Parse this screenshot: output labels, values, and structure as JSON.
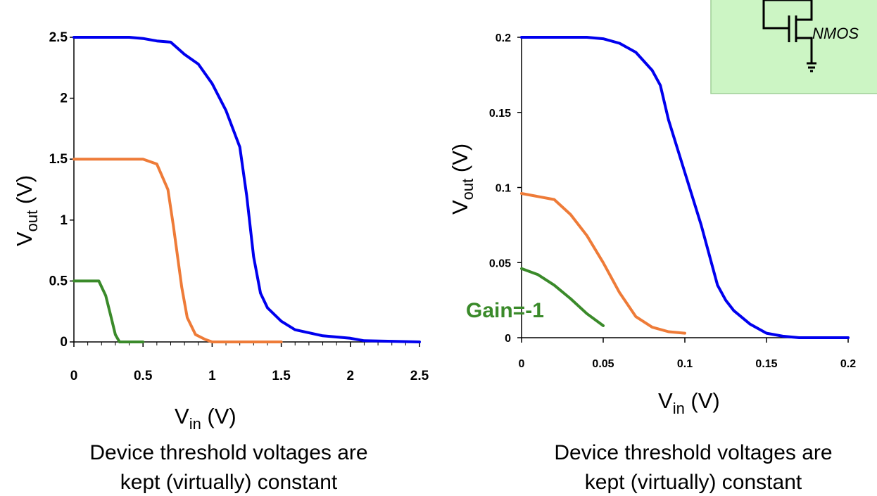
{
  "colors": {
    "blue": "#0000ee",
    "orange": "#ee7b38",
    "green": "#3a8a2a",
    "inset_bg": "#ccf5c4",
    "inset_border": "#9fcf97"
  },
  "inset": {
    "label": "NMOS"
  },
  "chart_data": [
    {
      "type": "line",
      "xlabel": "V",
      "xlabel_sub": "in",
      "xlabel_unit": " (V)",
      "ylabel": "V",
      "ylabel_sub": "out",
      "ylabel_unit": " (V)",
      "xlim": [
        0,
        2.5
      ],
      "ylim": [
        0,
        2.5
      ],
      "xticks": [
        "0",
        "0.5",
        "1",
        "1.5",
        "2",
        "2.5"
      ],
      "yticks": [
        "0",
        "0.5",
        "1",
        "1.5",
        "2",
        "2.5"
      ],
      "caption": [
        "Device threshold voltages are",
        "kept (virtually) constant"
      ],
      "series": [
        {
          "color": "blue",
          "points": [
            [
              0,
              2.5
            ],
            [
              0.4,
              2.5
            ],
            [
              0.5,
              2.49
            ],
            [
              0.6,
              2.47
            ],
            [
              0.7,
              2.46
            ],
            [
              0.8,
              2.36
            ],
            [
              0.9,
              2.28
            ],
            [
              1.0,
              2.12
            ],
            [
              1.1,
              1.9
            ],
            [
              1.2,
              1.6
            ],
            [
              1.25,
              1.2
            ],
            [
              1.3,
              0.7
            ],
            [
              1.35,
              0.4
            ],
            [
              1.4,
              0.28
            ],
            [
              1.5,
              0.17
            ],
            [
              1.6,
              0.1
            ],
            [
              1.8,
              0.05
            ],
            [
              2.0,
              0.03
            ],
            [
              2.1,
              0.01
            ],
            [
              2.5,
              0.0
            ]
          ]
        },
        {
          "color": "orange",
          "points": [
            [
              0,
              1.5
            ],
            [
              0.5,
              1.5
            ],
            [
              0.6,
              1.46
            ],
            [
              0.68,
              1.25
            ],
            [
              0.72,
              0.95
            ],
            [
              0.78,
              0.45
            ],
            [
              0.82,
              0.2
            ],
            [
              0.88,
              0.06
            ],
            [
              0.95,
              0.02
            ],
            [
              1.0,
              0.0
            ],
            [
              1.5,
              0.0
            ]
          ]
        },
        {
          "color": "green",
          "points": [
            [
              0,
              0.5
            ],
            [
              0.18,
              0.5
            ],
            [
              0.23,
              0.38
            ],
            [
              0.27,
              0.2
            ],
            [
              0.3,
              0.06
            ],
            [
              0.33,
              0.0
            ],
            [
              0.5,
              0.0
            ]
          ]
        }
      ]
    },
    {
      "type": "line",
      "xlabel": "V",
      "xlabel_sub": "in",
      "xlabel_unit": " (V)",
      "ylabel": "V",
      "ylabel_sub": "out",
      "ylabel_unit": " (V)",
      "xlim": [
        0,
        0.2
      ],
      "ylim": [
        0,
        0.2
      ],
      "xticks": [
        "0",
        "0.05",
        "0.1",
        "0.15",
        "0.2"
      ],
      "yticks": [
        "0",
        "0.05",
        "0.1",
        "0.15",
        "0.2"
      ],
      "caption": [
        "Device threshold voltages are",
        "kept (virtually) constant"
      ],
      "annotation": "Gain=-1",
      "series": [
        {
          "color": "blue",
          "points": [
            [
              0,
              0.2
            ],
            [
              0.04,
              0.2
            ],
            [
              0.05,
              0.199
            ],
            [
              0.06,
              0.196
            ],
            [
              0.07,
              0.19
            ],
            [
              0.08,
              0.178
            ],
            [
              0.085,
              0.168
            ],
            [
              0.09,
              0.145
            ],
            [
              0.1,
              0.11
            ],
            [
              0.11,
              0.075
            ],
            [
              0.12,
              0.035
            ],
            [
              0.125,
              0.025
            ],
            [
              0.13,
              0.018
            ],
            [
              0.14,
              0.009
            ],
            [
              0.15,
              0.003
            ],
            [
              0.16,
              0.001
            ],
            [
              0.17,
              0.0
            ],
            [
              0.2,
              0.0
            ]
          ]
        },
        {
          "color": "orange",
          "points": [
            [
              0,
              0.096
            ],
            [
              0.01,
              0.094
            ],
            [
              0.02,
              0.092
            ],
            [
              0.03,
              0.082
            ],
            [
              0.04,
              0.068
            ],
            [
              0.05,
              0.05
            ],
            [
              0.06,
              0.03
            ],
            [
              0.07,
              0.014
            ],
            [
              0.08,
              0.007
            ],
            [
              0.09,
              0.004
            ],
            [
              0.1,
              0.003
            ]
          ]
        },
        {
          "color": "green",
          "points": [
            [
              0,
              0.046
            ],
            [
              0.01,
              0.042
            ],
            [
              0.02,
              0.035
            ],
            [
              0.03,
              0.026
            ],
            [
              0.04,
              0.016
            ],
            [
              0.05,
              0.008
            ]
          ]
        }
      ]
    }
  ]
}
